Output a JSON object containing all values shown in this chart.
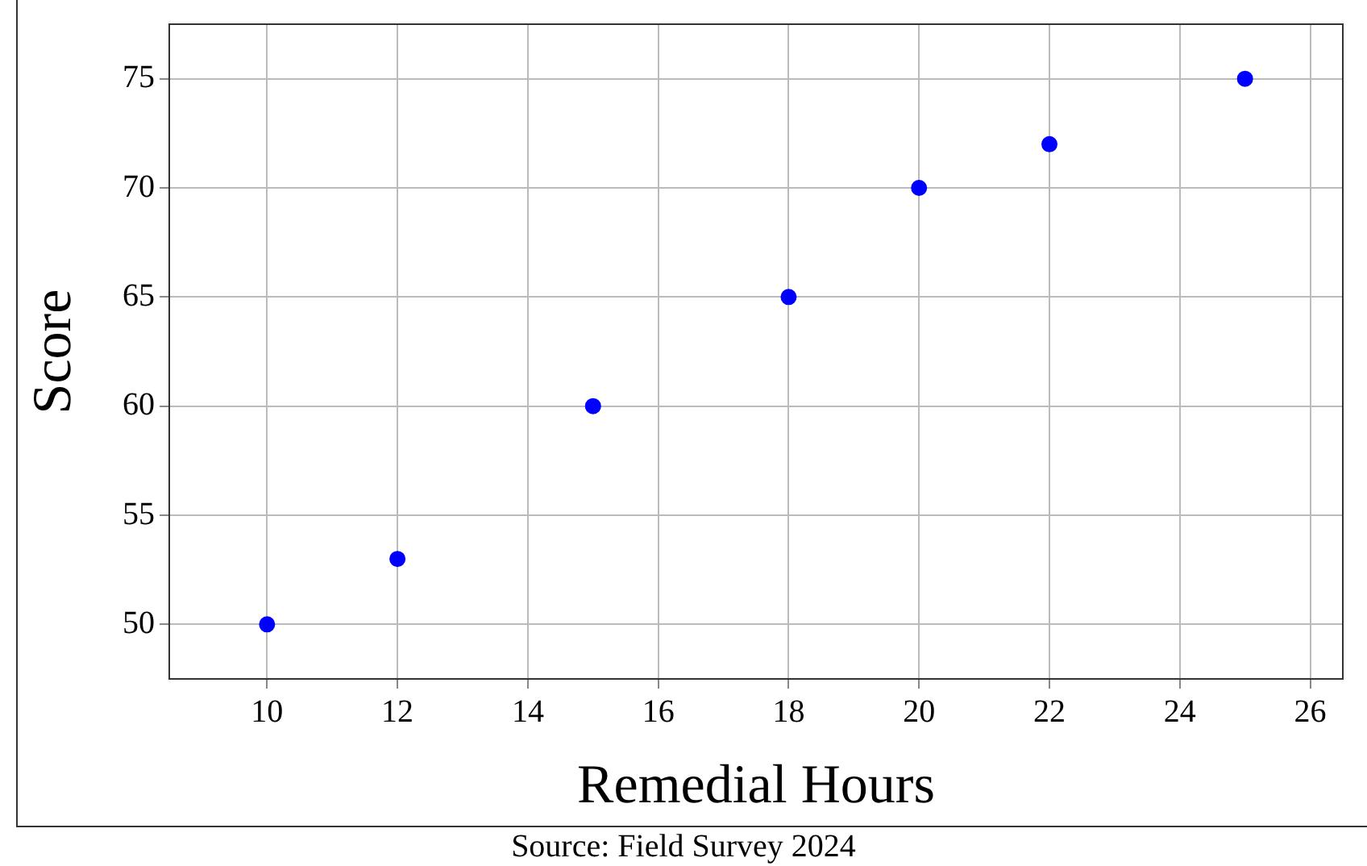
{
  "chart_data": {
    "type": "scatter",
    "xlabel": "Remedial Hours",
    "ylabel": "Score",
    "annotations": [
      "Source: Field Survey 2024"
    ],
    "series": [
      {
        "color": "#0000ff",
        "x": [
          10,
          12,
          15,
          18,
          20,
          22,
          25
        ],
        "values": [
          50,
          53,
          60,
          65,
          70,
          72,
          75
        ]
      }
    ],
    "xlim": [
      8.5,
      26.5
    ],
    "xticks": [
      10,
      12,
      14,
      16,
      18,
      20,
      22,
      24,
      26
    ],
    "ylim": [
      47.5,
      77.5
    ],
    "yticks": [
      50,
      55,
      60,
      65,
      70,
      75
    ],
    "grid": true,
    "legend": false,
    "marker": "circle"
  }
}
